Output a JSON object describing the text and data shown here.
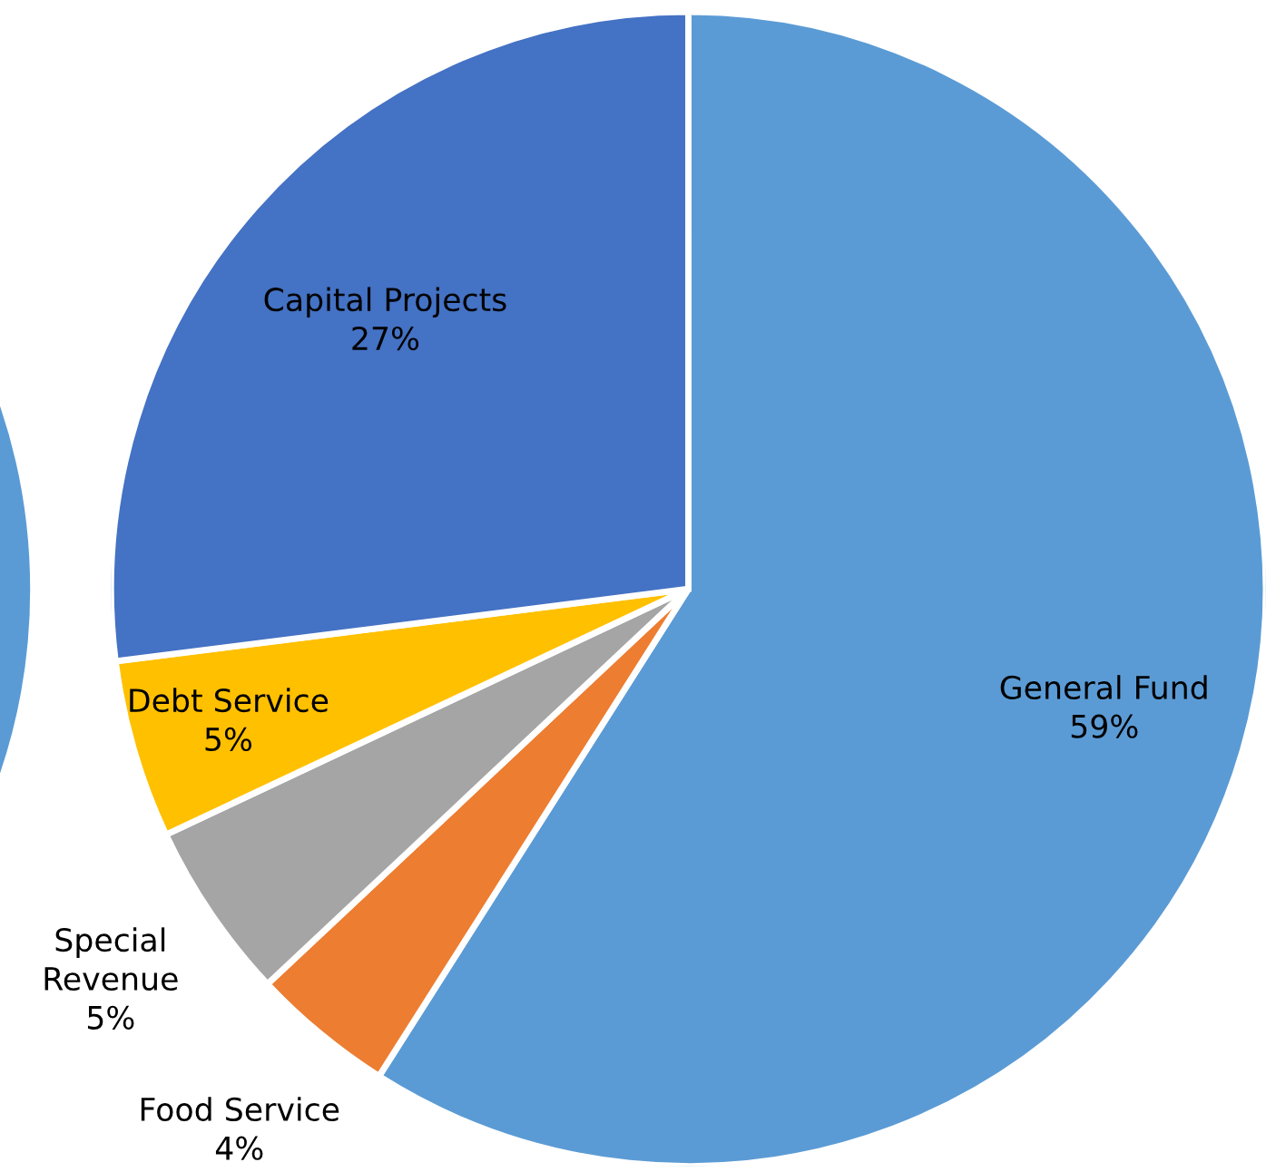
{
  "chart_data": {
    "type": "pie",
    "categories": [
      "General Fund",
      "Food Service",
      "Special Revenue",
      "Debt Service",
      "Capital Projects"
    ],
    "values": [
      59,
      4,
      5,
      5,
      27
    ],
    "colors": [
      "#5b9bd5",
      "#ed7d31",
      "#a5a5a5",
      "#ffc000",
      "#4472c4"
    ],
    "value_labels": [
      "59%",
      "4%",
      "5%",
      "5%",
      "27%"
    ]
  }
}
